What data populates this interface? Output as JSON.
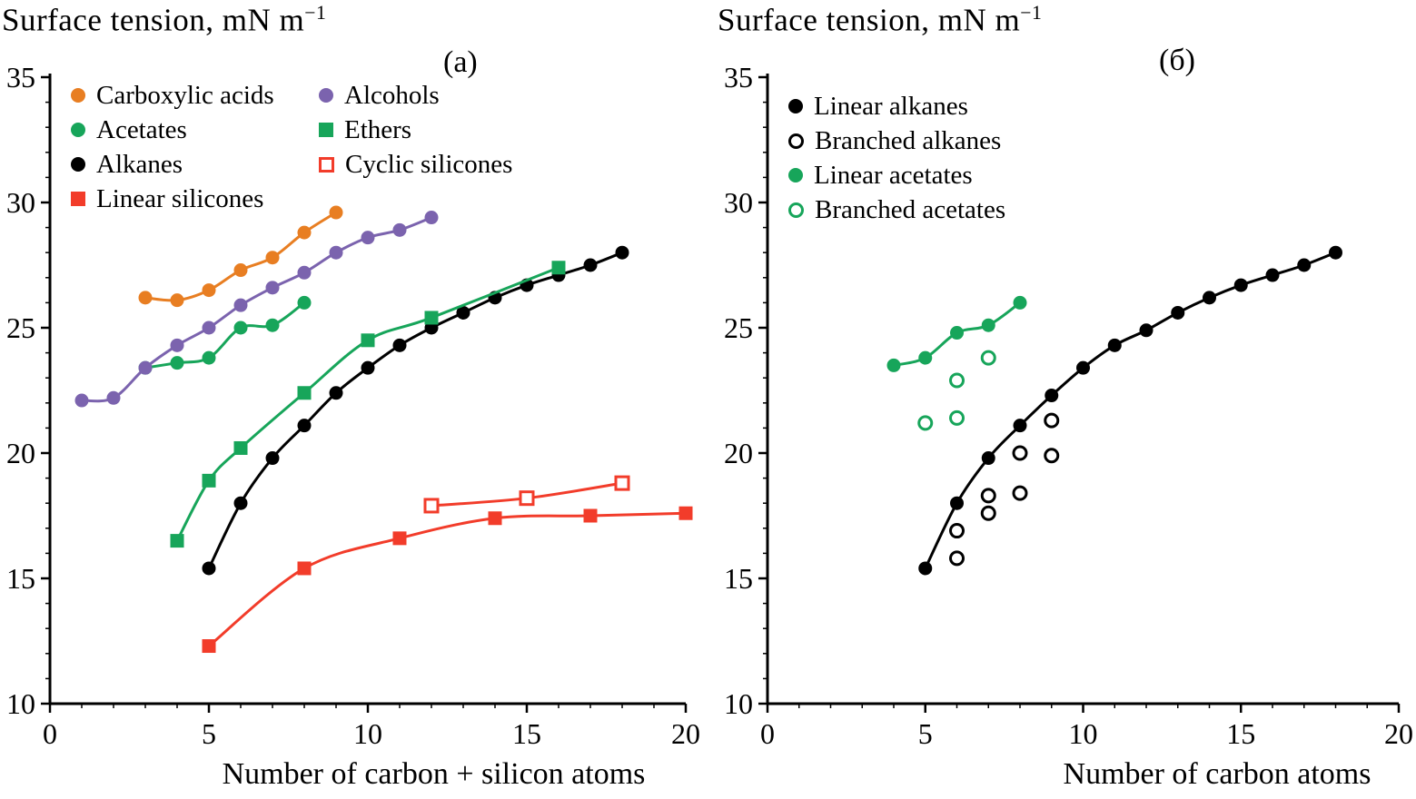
{
  "figure": {
    "background": "#ffffff",
    "axis_color": "#000000",
    "palette": {
      "orange": "#e87e22",
      "green": "#17a55a",
      "purple": "#7b63ae",
      "red": "#f23c2a",
      "black": "#000000"
    }
  },
  "chart_data": [
    {
      "type": "scatter",
      "panel_label": "(a)",
      "ylabel_main": "Surface tension, mN m",
      "ylabel_sup": "−1",
      "xlabel": "Number of carbon + silicon atoms",
      "xlim": [
        0,
        20
      ],
      "ylim": [
        10,
        35
      ],
      "xticks": [
        0,
        5,
        10,
        15,
        20
      ],
      "yticks": [
        10,
        15,
        20,
        25,
        30,
        35
      ],
      "grid": false,
      "legend_position": "top-left",
      "legend_columns": 2,
      "series": [
        {
          "name": "Carboxylic acids",
          "color": "#e87e22",
          "marker": "circle",
          "open": false,
          "line": true,
          "points": [
            [
              3,
              26.2
            ],
            [
              4,
              26.1
            ],
            [
              5,
              26.5
            ],
            [
              6,
              27.3
            ],
            [
              7,
              27.8
            ],
            [
              8,
              28.8
            ],
            [
              9,
              29.6
            ]
          ]
        },
        {
          "name": "Acetates",
          "color": "#17a55a",
          "marker": "circle",
          "open": false,
          "line": true,
          "points": [
            [
              3,
              23.4
            ],
            [
              4,
              23.6
            ],
            [
              5,
              23.8
            ],
            [
              6,
              25.0
            ],
            [
              7,
              25.1
            ],
            [
              8,
              26.0
            ]
          ]
        },
        {
          "name": "Alkanes",
          "color": "#000000",
          "marker": "circle",
          "open": false,
          "line": true,
          "points": [
            [
              5,
              15.4
            ],
            [
              6,
              18.0
            ],
            [
              7,
              19.8
            ],
            [
              8,
              21.1
            ],
            [
              9,
              22.4
            ],
            [
              10,
              23.4
            ],
            [
              11,
              24.3
            ],
            [
              12,
              25.0
            ],
            [
              13,
              25.6
            ],
            [
              14,
              26.2
            ],
            [
              15,
              26.7
            ],
            [
              16,
              27.1
            ],
            [
              17,
              27.5
            ],
            [
              18,
              28.0
            ]
          ]
        },
        {
          "name": "Linear silicones",
          "color": "#f23c2a",
          "marker": "square",
          "open": false,
          "line": true,
          "points": [
            [
              5,
              12.3
            ],
            [
              8,
              15.4
            ],
            [
              11,
              16.6
            ],
            [
              14,
              17.4
            ],
            [
              17,
              17.5
            ],
            [
              20,
              17.6
            ]
          ]
        },
        {
          "name": "Alcohols",
          "color": "#7b63ae",
          "marker": "circle",
          "open": false,
          "line": true,
          "points": [
            [
              1,
              22.1
            ],
            [
              2,
              22.2
            ],
            [
              3,
              23.4
            ],
            [
              4,
              24.3
            ],
            [
              5,
              25.0
            ],
            [
              6,
              25.9
            ],
            [
              7,
              26.6
            ],
            [
              8,
              27.2
            ],
            [
              9,
              28.0
            ],
            [
              10,
              28.6
            ],
            [
              11,
              28.9
            ],
            [
              12,
              29.4
            ]
          ]
        },
        {
          "name": "Ethers",
          "color": "#17a55a",
          "marker": "square",
          "open": false,
          "line": true,
          "points": [
            [
              4,
              16.5
            ],
            [
              5,
              18.9
            ],
            [
              6,
              20.2
            ],
            [
              8,
              22.4
            ],
            [
              10,
              24.5
            ],
            [
              12,
              25.4
            ],
            [
              16,
              27.4
            ]
          ]
        },
        {
          "name": "Cyclic silicones",
          "color": "#f23c2a",
          "marker": "square",
          "open": true,
          "line": true,
          "points": [
            [
              12,
              17.9
            ],
            [
              15,
              18.2
            ],
            [
              18,
              18.8
            ]
          ]
        }
      ]
    },
    {
      "type": "scatter",
      "panel_label": "(б)",
      "ylabel_main": "Surface tension, mN m",
      "ylabel_sup": "−1",
      "xlabel": "Number of carbon atoms",
      "xlim": [
        0,
        20
      ],
      "ylim": [
        10,
        35
      ],
      "xticks": [
        0,
        5,
        10,
        15,
        20
      ],
      "yticks": [
        10,
        15,
        20,
        25,
        30,
        35
      ],
      "grid": false,
      "legend_position": "top-left",
      "legend_columns": 1,
      "series": [
        {
          "name": "Linear alkanes",
          "color": "#000000",
          "marker": "circle",
          "open": false,
          "line": true,
          "points": [
            [
              5,
              15.4
            ],
            [
              6,
              18.0
            ],
            [
              7,
              19.8
            ],
            [
              8,
              21.1
            ],
            [
              9,
              22.3
            ],
            [
              10,
              23.4
            ],
            [
              11,
              24.3
            ],
            [
              12,
              24.9
            ],
            [
              13,
              25.6
            ],
            [
              14,
              26.2
            ],
            [
              15,
              26.7
            ],
            [
              16,
              27.1
            ],
            [
              17,
              27.5
            ],
            [
              18,
              28.0
            ]
          ]
        },
        {
          "name": "Branched alkanes",
          "color": "#000000",
          "marker": "circle",
          "open": true,
          "line": false,
          "points": [
            [
              6,
              15.8
            ],
            [
              6,
              16.9
            ],
            [
              7,
              17.6
            ],
            [
              7,
              18.3
            ],
            [
              8,
              18.4
            ],
            [
              8,
              20.0
            ],
            [
              9,
              19.9
            ],
            [
              9,
              21.3
            ]
          ]
        },
        {
          "name": "Linear acetates",
          "color": "#17a55a",
          "marker": "circle",
          "open": false,
          "line": true,
          "points": [
            [
              4,
              23.5
            ],
            [
              5,
              23.8
            ],
            [
              6,
              24.8
            ],
            [
              7,
              25.1
            ],
            [
              8,
              26.0
            ]
          ]
        },
        {
          "name": "Branched acetates",
          "color": "#17a55a",
          "marker": "circle",
          "open": true,
          "line": false,
          "points": [
            [
              5,
              21.2
            ],
            [
              6,
              21.4
            ],
            [
              6,
              22.9
            ],
            [
              7,
              23.8
            ]
          ]
        }
      ]
    }
  ]
}
